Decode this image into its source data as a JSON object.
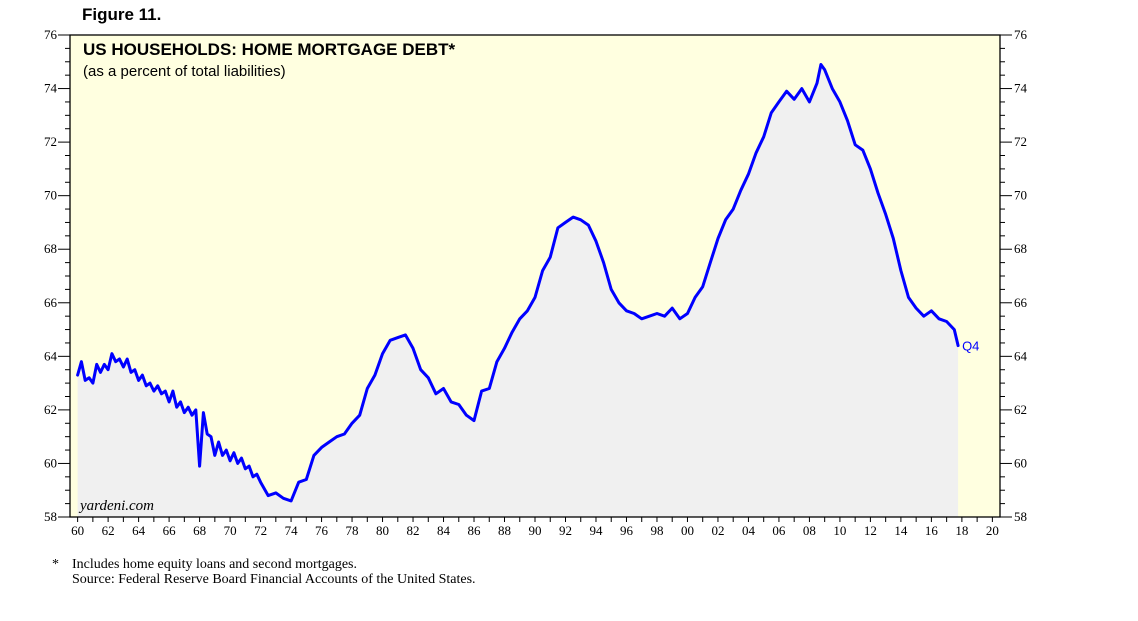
{
  "figure_label": "Figure 11.",
  "footnote": {
    "marker": "*",
    "line1": "Includes home equity loans and second mortgages.",
    "line2": "Source: Federal Reserve Board Financial Accounts of the United States."
  },
  "watermark": "yardeni.com",
  "colors": {
    "plot_background": "#ffffe0",
    "fill_under_line": "#f0f0f0",
    "line": "#0000ff"
  },
  "chart_data": {
    "type": "area",
    "title": "US HOUSEHOLDS: HOME MORTGAGE DEBT*",
    "subtitle": "(as a percent of total liabilities)",
    "xlabel": "",
    "ylabel": "",
    "ylim": [
      58,
      76
    ],
    "xlim": [
      1959.5,
      2020.5
    ],
    "y_ticks": [
      58,
      60,
      62,
      64,
      66,
      68,
      70,
      72,
      74,
      76
    ],
    "x_tick_labels": [
      "60",
      "62",
      "64",
      "66",
      "68",
      "70",
      "72",
      "74",
      "76",
      "78",
      "80",
      "82",
      "84",
      "86",
      "88",
      "90",
      "92",
      "94",
      "96",
      "98",
      "00",
      "02",
      "04",
      "06",
      "08",
      "10",
      "12",
      "14",
      "16",
      "18",
      "20"
    ],
    "x_tick_years": [
      1960,
      1962,
      1964,
      1966,
      1968,
      1970,
      1972,
      1974,
      1976,
      1978,
      1980,
      1982,
      1984,
      1986,
      1988,
      1990,
      1992,
      1994,
      1996,
      1998,
      2000,
      2002,
      2004,
      2006,
      2008,
      2010,
      2012,
      2014,
      2016,
      2018,
      2020
    ],
    "end_label": "Q4",
    "grid": false,
    "axes_right_labels": true,
    "series": [
      {
        "x": [
          1960.0,
          1960.25,
          1960.5,
          1960.75,
          1961.0,
          1961.25,
          1961.5,
          1961.75,
          1962.0,
          1962.25,
          1962.5,
          1962.75,
          1963.0,
          1963.25,
          1963.5,
          1963.75,
          1964.0,
          1964.25,
          1964.5,
          1964.75,
          1965.0,
          1965.25,
          1965.5,
          1965.75,
          1966.0,
          1966.25,
          1966.5,
          1966.75,
          1967.0,
          1967.25,
          1967.5,
          1967.75,
          1968.0,
          1968.25,
          1968.5,
          1968.75,
          1969.0,
          1969.25,
          1969.5,
          1969.75,
          1970.0,
          1970.25,
          1970.5,
          1970.75,
          1971.0,
          1971.25,
          1971.5,
          1971.75,
          1972.0,
          1972.5,
          1973.0,
          1973.5,
          1974.0,
          1974.5,
          1975.0,
          1975.5,
          1976.0,
          1976.5,
          1977.0,
          1977.5,
          1978.0,
          1978.5,
          1979.0,
          1979.5,
          1980.0,
          1980.5,
          1981.0,
          1981.5,
          1982.0,
          1982.5,
          1983.0,
          1983.5,
          1984.0,
          1984.5,
          1985.0,
          1985.5,
          1986.0,
          1986.5,
          1987.0,
          1987.5,
          1988.0,
          1988.5,
          1989.0,
          1989.5,
          1990.0,
          1990.5,
          1991.0,
          1991.5,
          1992.0,
          1992.5,
          1993.0,
          1993.5,
          1994.0,
          1994.5,
          1995.0,
          1995.5,
          1996.0,
          1996.5,
          1997.0,
          1997.5,
          1998.0,
          1998.5,
          1999.0,
          1999.5,
          2000.0,
          2000.5,
          2001.0,
          2001.5,
          2002.0,
          2002.5,
          2003.0,
          2003.5,
          2004.0,
          2004.5,
          2005.0,
          2005.5,
          2006.0,
          2006.5,
          2007.0,
          2007.5,
          2008.0,
          2008.5,
          2008.75,
          2009.0,
          2009.5,
          2010.0,
          2010.5,
          2011.0,
          2011.5,
          2012.0,
          2012.5,
          2013.0,
          2013.5,
          2014.0,
          2014.5,
          2015.0,
          2015.5,
          2016.0,
          2016.5,
          2017.0,
          2017.5,
          2017.75
        ],
        "values": [
          63.3,
          63.8,
          63.1,
          63.2,
          63.0,
          63.7,
          63.4,
          63.7,
          63.5,
          64.1,
          63.8,
          63.9,
          63.6,
          63.9,
          63.4,
          63.5,
          63.1,
          63.3,
          62.9,
          63.0,
          62.7,
          62.9,
          62.6,
          62.7,
          62.3,
          62.7,
          62.1,
          62.3,
          61.9,
          62.1,
          61.8,
          62.0,
          59.9,
          61.9,
          61.1,
          61.0,
          60.3,
          60.8,
          60.3,
          60.5,
          60.1,
          60.4,
          60.0,
          60.2,
          59.8,
          59.9,
          59.5,
          59.6,
          59.3,
          58.8,
          58.9,
          58.7,
          58.6,
          59.3,
          59.4,
          60.3,
          60.6,
          60.8,
          61.0,
          61.1,
          61.5,
          61.8,
          62.8,
          63.3,
          64.1,
          64.6,
          64.7,
          64.8,
          64.3,
          63.5,
          63.2,
          62.6,
          62.8,
          62.3,
          62.2,
          61.8,
          61.6,
          62.7,
          62.8,
          63.8,
          64.3,
          64.9,
          65.4,
          65.7,
          66.2,
          67.2,
          67.7,
          68.8,
          69.0,
          69.2,
          69.1,
          68.9,
          68.3,
          67.5,
          66.5,
          66.0,
          65.7,
          65.6,
          65.4,
          65.5,
          65.6,
          65.5,
          65.8,
          65.4,
          65.6,
          66.2,
          66.6,
          67.5,
          68.4,
          69.1,
          69.5,
          70.2,
          70.8,
          71.6,
          72.2,
          73.1,
          73.5,
          73.9,
          73.6,
          74.0,
          73.5,
          74.2,
          74.9,
          74.7,
          74.0,
          73.5,
          72.8,
          71.9,
          71.7,
          71.0,
          70.1,
          69.3,
          68.4,
          67.2,
          66.2,
          65.8,
          65.5,
          65.7,
          65.4,
          65.3,
          65.0,
          64.4
        ],
        "style": "line-with-shaded-area"
      }
    ]
  }
}
